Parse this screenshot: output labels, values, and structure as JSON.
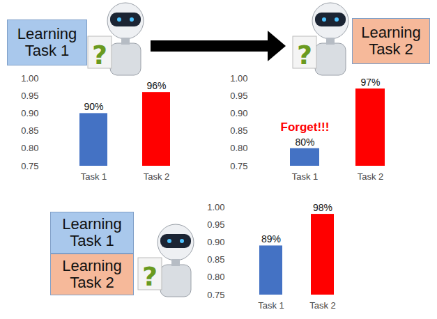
{
  "chart_data": [
    {
      "type": "bar",
      "categories": [
        "Task 1",
        "Task 2"
      ],
      "values": [
        0.9,
        0.96
      ],
      "value_labels": [
        "90%",
        "96%"
      ],
      "colors": [
        "#4472c4",
        "#ff0000"
      ],
      "data_labels": true,
      "ylim": [
        0.75,
        1.0
      ],
      "yticks": [
        0.75,
        {
          "value": 0.8,
          "label": "0.80"
        },
        0.85,
        {
          "value": 0.9,
          "label": "0.90"
        },
        0.95,
        {
          "value": 1.0,
          "label": "1.00"
        }
      ],
      "grid": false
    },
    {
      "type": "bar",
      "categories": [
        "Task 1",
        "Task 2"
      ],
      "values": [
        0.8,
        0.97
      ],
      "value_labels": [
        "80%",
        "97%"
      ],
      "colors": [
        "#4472c4",
        "#ff0000"
      ],
      "data_labels": true,
      "ylim": [
        0.75,
        1.0
      ],
      "yticks": [
        0.75,
        {
          "value": 0.8,
          "label": "0.80"
        },
        0.85,
        {
          "value": 0.9,
          "label": "0.90"
        },
        0.95,
        {
          "value": 1.0,
          "label": "1.00"
        }
      ],
      "grid": false,
      "annotations": [
        {
          "text": "Forget!!!",
          "x": "Task 1",
          "y": 0.862,
          "color": "#ff0000"
        }
      ]
    },
    {
      "type": "bar",
      "categories": [
        "Task 1",
        "Task 2"
      ],
      "values": [
        0.89,
        0.98
      ],
      "value_labels": [
        "89%",
        "98%"
      ],
      "colors": [
        "#4472c4",
        "#ff0000"
      ],
      "data_labels": true,
      "ylim": [
        0.75,
        1.0
      ],
      "yticks": [
        0.75,
        {
          "value": 0.8,
          "label": "0.80"
        },
        0.85,
        {
          "value": 0.9,
          "label": "0.90"
        },
        0.95,
        {
          "value": 1.0,
          "label": "1.00"
        }
      ],
      "grid": false
    }
  ],
  "boxes": [
    [
      {
        "text": "Learning Task 1",
        "color": "#a9c8ec"
      }
    ],
    [
      {
        "text": "Learning Task 2",
        "color": "#f6b99a"
      }
    ],
    [
      {
        "text": "Learning Task 1",
        "color": "#a9c8ec"
      },
      {
        "text": "Learning Task 2",
        "color": "#f6b99a"
      }
    ]
  ],
  "robot_text": "?"
}
